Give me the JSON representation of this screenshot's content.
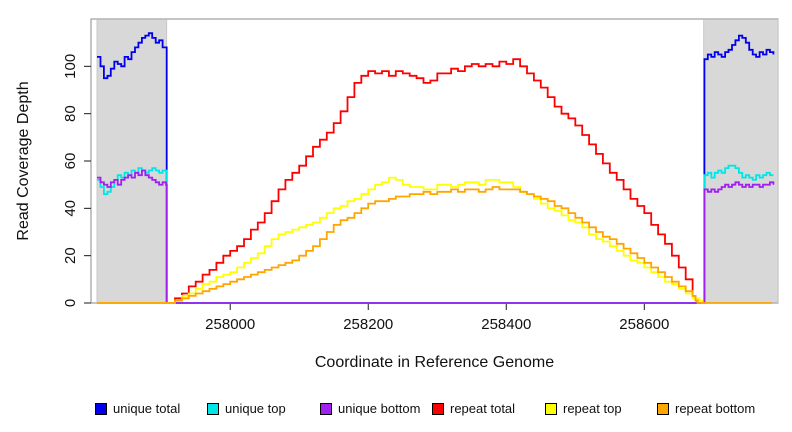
{
  "chart_data": {
    "type": "line",
    "title": "",
    "xlabel": "Coordinate in Reference Genome",
    "ylabel": "Read Coverage Depth",
    "xlim": [
      257807,
      258785
    ],
    "ylim": [
      0,
      120
    ],
    "xticks": [
      258000,
      258200,
      258400,
      258600
    ],
    "yticks": [
      0,
      20,
      40,
      60,
      80,
      100
    ],
    "grid": false,
    "legend_position": "bottom",
    "line_style": "step",
    "shaded_regions": [
      {
        "from": 257807,
        "to": 257908,
        "color": "#d8d8d8"
      },
      {
        "from": 258686,
        "to": 258800,
        "color": "#d8d8d8"
      }
    ],
    "series": [
      {
        "name": "unique total",
        "color": "#0000ee",
        "segments": [
          {
            "x0": 257807,
            "dx": 5,
            "v": [
              104,
              100,
              95,
              96,
              99,
              102,
              101,
              100,
              104,
              103,
              106,
              108,
              110,
              112,
              113,
              114,
              112,
              110,
              111,
              108,
              108
            ]
          },
          {
            "x0": 257908,
            "dx": 778,
            "v": [
              0,
              0
            ]
          },
          {
            "x0": 258687,
            "dx": 5,
            "v": [
              103,
              105,
              104,
              106,
              105,
              104,
              106,
              107,
              109,
              111,
              113,
              112,
              110,
              107,
              105,
              104,
              106,
              105,
              107,
              106,
              105
            ]
          }
        ]
      },
      {
        "name": "unique top",
        "color": "#00e6e6",
        "segments": [
          {
            "x0": 257807,
            "dx": 5,
            "v": [
              52,
              49,
              46,
              47,
              49,
              52,
              54,
              53,
              55,
              54,
              56,
              55,
              57,
              56,
              55,
              56,
              57,
              56,
              55,
              56,
              56
            ]
          },
          {
            "x0": 257908,
            "dx": 778,
            "v": [
              0,
              0
            ]
          },
          {
            "x0": 258687,
            "dx": 5,
            "v": [
              54,
              55,
              53,
              55,
              56,
              55,
              57,
              58,
              58,
              57,
              55,
              53,
              54,
              53,
              52,
              54,
              53,
              54,
              55,
              54,
              54
            ]
          }
        ]
      },
      {
        "name": "unique bottom",
        "color": "#a020f0",
        "segments": [
          {
            "x0": 257807,
            "dx": 5,
            "v": [
              53,
              51,
              50,
              49,
              51,
              52,
              50,
              52,
              53,
              54,
              53,
              55,
              54,
              56,
              54,
              53,
              52,
              51,
              50,
              51,
              50
            ]
          },
          {
            "x0": 257908,
            "dx": 778,
            "v": [
              0,
              0
            ]
          },
          {
            "x0": 258687,
            "dx": 5,
            "v": [
              48,
              47,
              48,
              47,
              48,
              49,
              50,
              49,
              50,
              51,
              50,
              49,
              50,
              49,
              50,
              50,
              49,
              50,
              50,
              51,
              50
            ]
          }
        ]
      },
      {
        "name": "repeat total",
        "color": "#ff0000",
        "segments": [
          {
            "x0": 257807,
            "dx": 101,
            "v": [
              0,
              0
            ]
          },
          {
            "x0": 257910,
            "dx": 10,
            "v": [
              0,
              2,
              4,
              7,
              9,
              12,
              14,
              17,
              20,
              22,
              24,
              27,
              31,
              34,
              38,
              43,
              48,
              52,
              55,
              58,
              62,
              66,
              69,
              72,
              76,
              81,
              87,
              93,
              96,
              98,
              97,
              98,
              96,
              98,
              97,
              96,
              95,
              93,
              94,
              97,
              97,
              99,
              98,
              100,
              101,
              100,
              101,
              100,
              102,
              101,
              103,
              100,
              97,
              94,
              91,
              87,
              83,
              80,
              78,
              75,
              71,
              67,
              63,
              59,
              55,
              52,
              48,
              44,
              41,
              38,
              33,
              29,
              25,
              20,
              15,
              10,
              3
            ]
          },
          {
            "x0": 258674,
            "dx": 3,
            "v": [
              1,
              0
            ]
          },
          {
            "x0": 258686,
            "dx": 1,
            "v": [
              0
            ]
          }
        ]
      },
      {
        "name": "repeat top",
        "color": "#ffff00",
        "segments": [
          {
            "x0": 257807,
            "dx": 101,
            "v": [
              0,
              0
            ]
          },
          {
            "x0": 257910,
            "dx": 10,
            "v": [
              0,
              1,
              3,
              4,
              6,
              8,
              9,
              11,
              12,
              13,
              15,
              17,
              19,
              21,
              24,
              27,
              29,
              30,
              31,
              32,
              33,
              34,
              36,
              38,
              40,
              41,
              43,
              44,
              46,
              48,
              50,
              51,
              53,
              52,
              50,
              49,
              49,
              48,
              48,
              50,
              50,
              49,
              50,
              51,
              51,
              50,
              52,
              52,
              51,
              51,
              49,
              47,
              46,
              44,
              42,
              40,
              39,
              37,
              35,
              34,
              32,
              29,
              27,
              26,
              24,
              22,
              20,
              18,
              17,
              15,
              13,
              11,
              9,
              8,
              6,
              4,
              2,
              1
            ]
          },
          {
            "x0": 258684,
            "dx": 2,
            "v": [
              0,
              0
            ]
          }
        ]
      },
      {
        "name": "repeat bottom",
        "color": "#ffa500",
        "segments": [
          {
            "x0": 257807,
            "dx": 101,
            "v": [
              0,
              0
            ]
          },
          {
            "x0": 257910,
            "dx": 10,
            "v": [
              0,
              1,
              2,
              3,
              4,
              5,
              6,
              7,
              8,
              9,
              10,
              11,
              12,
              13,
              14,
              15,
              16,
              17,
              18,
              20,
              22,
              24,
              27,
              30,
              33,
              35,
              36,
              38,
              40,
              42,
              43,
              43,
              44,
              45,
              45,
              46,
              46,
              47,
              46,
              47,
              47,
              48,
              47,
              48,
              48,
              47,
              48,
              49,
              48,
              48,
              48,
              47,
              46,
              45,
              44,
              43,
              41,
              40,
              38,
              36,
              34,
              32,
              30,
              28,
              27,
              25,
              23,
              21,
              19,
              17,
              15,
              13,
              11,
              9,
              7,
              5,
              3
            ]
          },
          {
            "x0": 258674,
            "dx": 3,
            "v": [
              1,
              0
            ]
          },
          {
            "x0": 258686,
            "dx": 99,
            "v": [
              0,
              0
            ]
          }
        ]
      }
    ]
  }
}
